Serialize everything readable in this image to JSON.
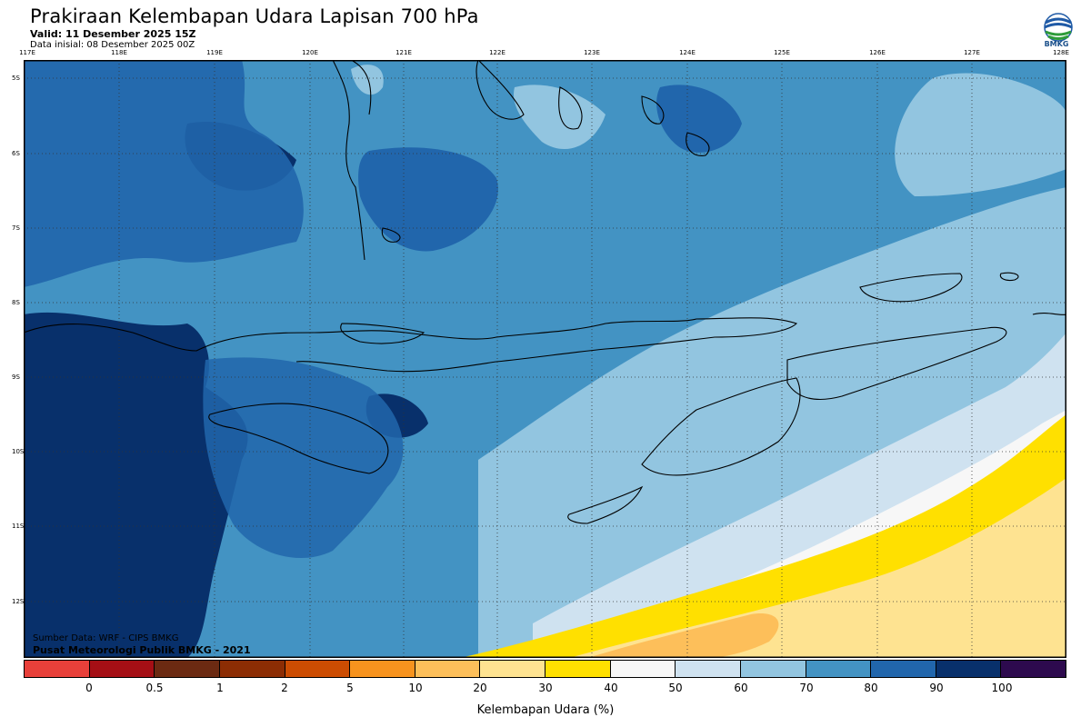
{
  "header": {
    "title": "Prakiraan Kelembapan Udara Lapisan 700 hPa",
    "valid": "Valid: 11 Desember 2025 15Z",
    "init": "Data inisial: 08 Desember 2025 00Z"
  },
  "logo": {
    "text": "BMKG"
  },
  "map": {
    "lon_labels": [
      "117E",
      "118E",
      "119E",
      "120E",
      "121E",
      "122E",
      "123E",
      "124E",
      "125E",
      "126E",
      "127E",
      "128E"
    ],
    "lat_labels": [
      "5S",
      "6S",
      "7S",
      "8S",
      "9S",
      "10S",
      "11S",
      "12S"
    ],
    "source": "Sumber Data: WRF - CIPS BMKG",
    "credit": "Pusat Meteorologi Publik BMKG - 2021"
  },
  "colorbar": {
    "colors": [
      "#e8403a",
      "#a50f15",
      "#6b2a12",
      "#8c2d04",
      "#cc4c02",
      "#f7931e",
      "#fdbf5a",
      "#fee391",
      "#ffe000",
      "#f7f7f7",
      "#cfe2f0",
      "#92c5e0",
      "#4393c3",
      "#2166ac",
      "#08306b",
      "#2d0a4e"
    ],
    "ticks": [
      "0",
      "0.5",
      "1",
      "2",
      "5",
      "10",
      "20",
      "30",
      "40",
      "50",
      "60",
      "70",
      "80",
      "90",
      "100"
    ],
    "label": "Kelembapan Udara (%)"
  }
}
